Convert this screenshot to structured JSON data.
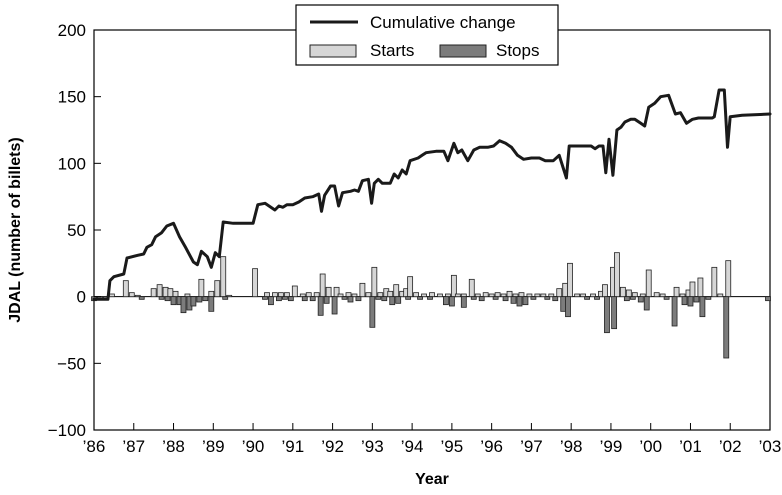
{
  "chart_data": {
    "type": "bar",
    "xlabel": "Year",
    "ylabel": "JDAL (number of billets)",
    "ylim": [
      -100,
      200
    ],
    "xlim": [
      1986.0,
      2003.0
    ],
    "yticks": [
      -100,
      -50,
      0,
      50,
      100,
      150,
      200
    ],
    "ytick_labels": [
      "−100",
      "−50",
      "0",
      "50",
      "100",
      "150",
      "200"
    ],
    "xticks": [
      1986,
      1987,
      1988,
      1989,
      1990,
      1991,
      1992,
      1993,
      1994,
      1995,
      1996,
      1997,
      1998,
      1999,
      2000,
      2001,
      2002,
      2003
    ],
    "xtick_labels": [
      "’86",
      "’87",
      "’88",
      "’89",
      "’90",
      "’91",
      "’92",
      "’93",
      "’94",
      "’95",
      "’96",
      "’97",
      "’98",
      "’99",
      "’00",
      "’01",
      "’02",
      "’03"
    ],
    "grid": false,
    "legend": {
      "placement": "top-center",
      "entries": [
        "Cumulative change",
        "Starts",
        "Stops"
      ]
    },
    "colors": {
      "line": "#1a1a1a",
      "starts_fill": "#d6d6d6",
      "stops_fill": "#7c7c7c",
      "bar_edge": "#222222"
    },
    "series": [
      {
        "name": "Cumulative change",
        "type": "line",
        "points": [
          [
            1986.0,
            -2
          ],
          [
            1986.35,
            -2
          ],
          [
            1986.4,
            12
          ],
          [
            1986.5,
            15
          ],
          [
            1986.75,
            17
          ],
          [
            1986.83,
            29
          ],
          [
            1987.1,
            31
          ],
          [
            1987.25,
            32
          ],
          [
            1987.33,
            37
          ],
          [
            1987.45,
            39
          ],
          [
            1987.55,
            45
          ],
          [
            1987.7,
            48
          ],
          [
            1987.83,
            53
          ],
          [
            1988.0,
            55
          ],
          [
            1988.15,
            45
          ],
          [
            1988.3,
            37
          ],
          [
            1988.5,
            26
          ],
          [
            1988.6,
            24
          ],
          [
            1988.7,
            34
          ],
          [
            1988.85,
            30
          ],
          [
            1988.95,
            22
          ],
          [
            1989.05,
            33
          ],
          [
            1989.15,
            30
          ],
          [
            1989.25,
            56
          ],
          [
            1989.5,
            55
          ],
          [
            1990.0,
            55
          ],
          [
            1990.12,
            69
          ],
          [
            1990.3,
            70
          ],
          [
            1990.55,
            65
          ],
          [
            1990.65,
            68
          ],
          [
            1990.75,
            67
          ],
          [
            1990.85,
            69
          ],
          [
            1991.0,
            69
          ],
          [
            1991.15,
            71
          ],
          [
            1991.3,
            74
          ],
          [
            1991.5,
            75
          ],
          [
            1991.65,
            77
          ],
          [
            1991.72,
            64
          ],
          [
            1991.8,
            76
          ],
          [
            1991.95,
            83
          ],
          [
            1992.05,
            83
          ],
          [
            1992.15,
            68
          ],
          [
            1992.25,
            78
          ],
          [
            1992.45,
            79
          ],
          [
            1992.55,
            80
          ],
          [
            1992.65,
            79
          ],
          [
            1992.75,
            87
          ],
          [
            1992.9,
            88
          ],
          [
            1992.98,
            70
          ],
          [
            1993.05,
            85
          ],
          [
            1993.15,
            88
          ],
          [
            1993.25,
            85
          ],
          [
            1993.45,
            85
          ],
          [
            1993.55,
            92
          ],
          [
            1993.65,
            89
          ],
          [
            1993.75,
            95
          ],
          [
            1993.85,
            92
          ],
          [
            1993.95,
            102
          ],
          [
            1994.15,
            104
          ],
          [
            1994.25,
            106
          ],
          [
            1994.35,
            108
          ],
          [
            1994.6,
            109
          ],
          [
            1994.8,
            109
          ],
          [
            1994.9,
            102
          ],
          [
            1995.05,
            115
          ],
          [
            1995.15,
            108
          ],
          [
            1995.25,
            110
          ],
          [
            1995.4,
            102
          ],
          [
            1995.55,
            110
          ],
          [
            1995.7,
            112
          ],
          [
            1995.9,
            112
          ],
          [
            1996.05,
            113
          ],
          [
            1996.2,
            117
          ],
          [
            1996.35,
            115
          ],
          [
            1996.5,
            112
          ],
          [
            1996.65,
            106
          ],
          [
            1996.8,
            103
          ],
          [
            1997.0,
            104
          ],
          [
            1997.2,
            104
          ],
          [
            1997.35,
            102
          ],
          [
            1997.55,
            102
          ],
          [
            1997.7,
            106
          ],
          [
            1997.88,
            89
          ],
          [
            1997.95,
            113
          ],
          [
            1998.1,
            113
          ],
          [
            1998.5,
            113
          ],
          [
            1998.6,
            111
          ],
          [
            1998.7,
            113
          ],
          [
            1998.8,
            113
          ],
          [
            1998.87,
            93
          ],
          [
            1998.95,
            118
          ],
          [
            1999.05,
            91
          ],
          [
            1999.15,
            125
          ],
          [
            1999.25,
            127
          ],
          [
            1999.35,
            131
          ],
          [
            1999.5,
            133
          ],
          [
            1999.6,
            133
          ],
          [
            1999.75,
            130
          ],
          [
            1999.85,
            128
          ],
          [
            1999.95,
            142
          ],
          [
            2000.1,
            145
          ],
          [
            2000.25,
            150
          ],
          [
            2000.45,
            151
          ],
          [
            2000.62,
            137
          ],
          [
            2000.75,
            138
          ],
          [
            2000.9,
            130
          ],
          [
            2001.05,
            133
          ],
          [
            2001.2,
            134
          ],
          [
            2001.35,
            134
          ],
          [
            2001.55,
            134
          ],
          [
            2001.6,
            135
          ],
          [
            2001.72,
            155
          ],
          [
            2001.85,
            155
          ],
          [
            2001.93,
            112
          ],
          [
            2002.0,
            135
          ],
          [
            2002.3,
            136
          ],
          [
            2003.0,
            137
          ]
        ]
      },
      {
        "name": "Starts",
        "type": "bar",
        "points": [
          [
            1986.45,
            2
          ],
          [
            1986.8,
            12
          ],
          [
            1986.95,
            3
          ],
          [
            1987.1,
            1
          ],
          [
            1987.5,
            6
          ],
          [
            1987.65,
            9
          ],
          [
            1987.8,
            7
          ],
          [
            1987.92,
            6
          ],
          [
            1988.05,
            4
          ],
          [
            1988.35,
            2
          ],
          [
            1988.7,
            13
          ],
          [
            1988.95,
            4
          ],
          [
            1989.1,
            12
          ],
          [
            1989.25,
            30
          ],
          [
            1989.4,
            1
          ],
          [
            1990.05,
            21
          ],
          [
            1990.35,
            3
          ],
          [
            1990.55,
            3
          ],
          [
            1990.7,
            3
          ],
          [
            1990.85,
            3
          ],
          [
            1991.05,
            8
          ],
          [
            1991.25,
            2
          ],
          [
            1991.4,
            3
          ],
          [
            1991.6,
            3
          ],
          [
            1991.75,
            17
          ],
          [
            1991.9,
            7
          ],
          [
            1992.1,
            7
          ],
          [
            1992.2,
            2
          ],
          [
            1992.4,
            3
          ],
          [
            1992.55,
            2
          ],
          [
            1992.75,
            10
          ],
          [
            1992.9,
            3
          ],
          [
            1993.05,
            22
          ],
          [
            1993.2,
            3
          ],
          [
            1993.35,
            6
          ],
          [
            1993.45,
            4
          ],
          [
            1993.6,
            9
          ],
          [
            1993.75,
            4
          ],
          [
            1993.85,
            6
          ],
          [
            1993.95,
            15
          ],
          [
            1994.1,
            3
          ],
          [
            1994.3,
            2
          ],
          [
            1994.5,
            3
          ],
          [
            1994.7,
            2
          ],
          [
            1994.9,
            2
          ],
          [
            1995.05,
            16
          ],
          [
            1995.15,
            2
          ],
          [
            1995.3,
            2
          ],
          [
            1995.5,
            13
          ],
          [
            1995.65,
            2
          ],
          [
            1995.85,
            3
          ],
          [
            1996.0,
            2
          ],
          [
            1996.15,
            3
          ],
          [
            1996.3,
            2
          ],
          [
            1996.45,
            4
          ],
          [
            1996.6,
            2
          ],
          [
            1996.75,
            3
          ],
          [
            1996.95,
            2
          ],
          [
            1997.15,
            2
          ],
          [
            1997.3,
            2
          ],
          [
            1997.5,
            2
          ],
          [
            1997.7,
            6
          ],
          [
            1997.85,
            10
          ],
          [
            1997.97,
            25
          ],
          [
            1998.15,
            2
          ],
          [
            1998.3,
            2
          ],
          [
            1998.55,
            2
          ],
          [
            1998.75,
            4
          ],
          [
            1998.85,
            9
          ],
          [
            1999.05,
            22
          ],
          [
            1999.15,
            33
          ],
          [
            1999.3,
            7
          ],
          [
            1999.45,
            5
          ],
          [
            1999.6,
            3
          ],
          [
            1999.8,
            2
          ],
          [
            1999.95,
            20
          ],
          [
            2000.15,
            3
          ],
          [
            2000.3,
            2
          ],
          [
            2000.65,
            7
          ],
          [
            2000.8,
            2
          ],
          [
            2000.95,
            5
          ],
          [
            2001.05,
            11
          ],
          [
            2001.25,
            14
          ],
          [
            2001.6,
            22
          ],
          [
            2001.75,
            2
          ],
          [
            2001.95,
            27
          ]
        ]
      },
      {
        "name": "Stops",
        "type": "bar",
        "points": [
          [
            1986.0,
            -3
          ],
          [
            1986.15,
            -2
          ],
          [
            1986.3,
            -2
          ],
          [
            1987.2,
            -2
          ],
          [
            1987.7,
            -2
          ],
          [
            1987.85,
            -3
          ],
          [
            1988.0,
            -6
          ],
          [
            1988.15,
            -6
          ],
          [
            1988.25,
            -12
          ],
          [
            1988.4,
            -10
          ],
          [
            1988.5,
            -7
          ],
          [
            1988.65,
            -4
          ],
          [
            1988.8,
            -3
          ],
          [
            1988.95,
            -11
          ],
          [
            1989.3,
            -2
          ],
          [
            1990.3,
            -2
          ],
          [
            1990.45,
            -6
          ],
          [
            1990.65,
            -3
          ],
          [
            1990.8,
            -2
          ],
          [
            1990.95,
            -3
          ],
          [
            1991.3,
            -3
          ],
          [
            1991.5,
            -3
          ],
          [
            1991.7,
            -14
          ],
          [
            1991.85,
            -5
          ],
          [
            1992.05,
            -13
          ],
          [
            1992.3,
            -2
          ],
          [
            1992.45,
            -4
          ],
          [
            1992.65,
            -3
          ],
          [
            1993.0,
            -23
          ],
          [
            1993.15,
            -2
          ],
          [
            1993.3,
            -3
          ],
          [
            1993.5,
            -6
          ],
          [
            1993.65,
            -5
          ],
          [
            1993.9,
            -2
          ],
          [
            1994.2,
            -2
          ],
          [
            1994.45,
            -2
          ],
          [
            1994.85,
            -6
          ],
          [
            1995.0,
            -7
          ],
          [
            1995.3,
            -8
          ],
          [
            1995.55,
            -2
          ],
          [
            1995.75,
            -3
          ],
          [
            1996.1,
            -2
          ],
          [
            1996.35,
            -3
          ],
          [
            1996.55,
            -5
          ],
          [
            1996.7,
            -7
          ],
          [
            1996.85,
            -6
          ],
          [
            1997.05,
            -2
          ],
          [
            1997.4,
            -2
          ],
          [
            1997.6,
            -3
          ],
          [
            1997.8,
            -11
          ],
          [
            1997.92,
            -15
          ],
          [
            1998.4,
            -2
          ],
          [
            1998.65,
            -2
          ],
          [
            1998.9,
            -27
          ],
          [
            1999.08,
            -24
          ],
          [
            1999.4,
            -3
          ],
          [
            1999.55,
            -2
          ],
          [
            1999.75,
            -4
          ],
          [
            1999.9,
            -10
          ],
          [
            2000.4,
            -2
          ],
          [
            2000.6,
            -22
          ],
          [
            2000.85,
            -6
          ],
          [
            2001.0,
            -7
          ],
          [
            2001.15,
            -4
          ],
          [
            2001.3,
            -15
          ],
          [
            2001.45,
            -2
          ],
          [
            2001.9,
            -46
          ],
          [
            2002.95,
            -3
          ]
        ]
      }
    ]
  }
}
